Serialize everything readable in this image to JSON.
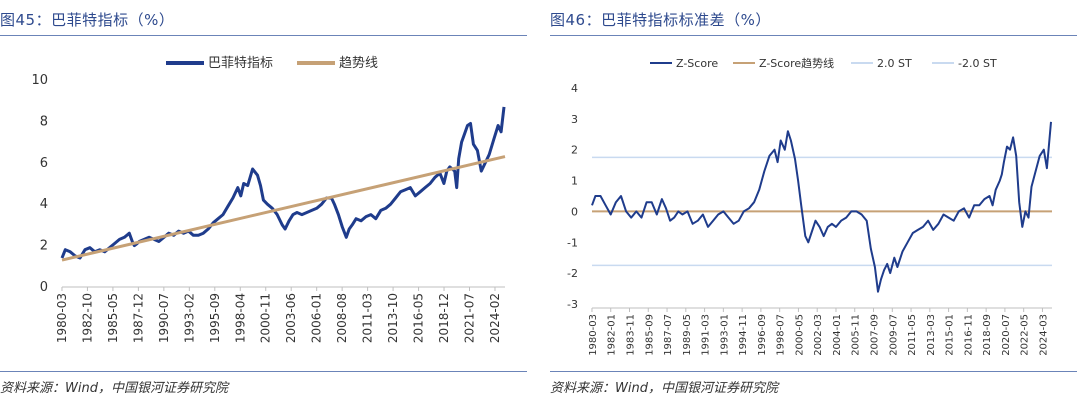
{
  "figures": [
    {
      "title": "图45：巴菲特指标（%）",
      "source": "资料来源：Wind，中国银河证券研究院"
    },
    {
      "title": "图46：巴菲特指标标准差（%）",
      "source": "资料来源：Wind，中国银河证券研究院"
    }
  ],
  "colors": {
    "navy": "#1f3c8c",
    "tan": "#c6a176",
    "light_blue": "#c9daf0",
    "axis": "#bfbfbf",
    "title": "#2e4a8e"
  },
  "chart_data": [
    {
      "type": "line",
      "title": "巴菲特指标（%）",
      "ylim": [
        0,
        10
      ],
      "yticks": [
        "0",
        "2",
        "4",
        "6",
        "8",
        "10"
      ],
      "xlim": [
        1980.17,
        2025.1
      ],
      "tick_labels": [
        "1980-03",
        "1982-10",
        "1985-05",
        "1987-12",
        "1990-07",
        "1993-02",
        "1995-09",
        "1998-04",
        "2000-11",
        "2003-06",
        "2006-01",
        "2008-08",
        "2011-03",
        "2013-10",
        "2016-05",
        "2018-12",
        "2021-07",
        "2024-02"
      ],
      "legend": [
        "巴菲特指标",
        "趋势线"
      ],
      "series": [
        {
          "name": "巴菲特指标",
          "x": [
            1980.17,
            1980.5,
            1981.0,
            1981.5,
            1982.0,
            1982.5,
            1983.0,
            1983.5,
            1984.0,
            1984.5,
            1985.0,
            1985.5,
            1986.0,
            1986.5,
            1987.0,
            1987.3,
            1987.5,
            1987.8,
            1988.0,
            1988.5,
            1989.0,
            1989.5,
            1990.0,
            1990.5,
            1991.0,
            1991.5,
            1992.0,
            1992.5,
            1993.0,
            1993.5,
            1994.0,
            1994.5,
            1995.0,
            1995.5,
            1996.0,
            1996.5,
            1997.0,
            1997.5,
            1998.0,
            1998.3,
            1998.6,
            1999.0,
            1999.5,
            2000.0,
            2000.3,
            2000.6,
            2001.0,
            2001.5,
            2002.0,
            2002.5,
            2002.8,
            2003.2,
            2003.6,
            2004.0,
            2004.5,
            2005.0,
            2005.5,
            2006.0,
            2006.5,
            2007.0,
            2007.5,
            2007.8,
            2008.2,
            2008.6,
            2009.0,
            2009.3,
            2009.6,
            2010.0,
            2010.5,
            2011.0,
            2011.5,
            2012.0,
            2012.5,
            2013.0,
            2013.5,
            2014.0,
            2014.5,
            2015.0,
            2015.5,
            2016.0,
            2016.5,
            2017.0,
            2017.5,
            2018.0,
            2018.5,
            2018.9,
            2019.2,
            2019.5,
            2020.0,
            2020.2,
            2020.4,
            2020.7,
            2021.0,
            2021.3,
            2021.6,
            2021.9,
            2022.3,
            2022.7,
            2023.0,
            2023.5,
            2024.0,
            2024.4,
            2024.7,
            2025.0
          ],
          "y": [
            1.4,
            1.8,
            1.7,
            1.5,
            1.4,
            1.8,
            1.9,
            1.7,
            1.8,
            1.7,
            1.9,
            2.1,
            2.3,
            2.4,
            2.6,
            2.2,
            2.0,
            2.1,
            2.2,
            2.3,
            2.4,
            2.3,
            2.2,
            2.4,
            2.6,
            2.5,
            2.7,
            2.6,
            2.7,
            2.5,
            2.5,
            2.6,
            2.8,
            3.1,
            3.3,
            3.5,
            3.9,
            4.3,
            4.8,
            4.4,
            5.0,
            4.9,
            5.7,
            5.4,
            4.9,
            4.2,
            4.0,
            3.8,
            3.5,
            3.0,
            2.8,
            3.2,
            3.5,
            3.6,
            3.5,
            3.6,
            3.7,
            3.8,
            4.0,
            4.3,
            4.3,
            4.0,
            3.5,
            2.9,
            2.4,
            2.8,
            3.0,
            3.3,
            3.2,
            3.4,
            3.5,
            3.3,
            3.7,
            3.8,
            4.0,
            4.3,
            4.6,
            4.7,
            4.8,
            4.4,
            4.6,
            4.8,
            5.0,
            5.3,
            5.5,
            5.0,
            5.6,
            5.8,
            5.6,
            4.8,
            6.2,
            7.0,
            7.4,
            7.8,
            7.9,
            6.9,
            6.6,
            5.6,
            5.9,
            6.4,
            7.2,
            7.8,
            7.5,
            8.7
          ]
        },
        {
          "name": "趋势线",
          "x": [
            1980.17,
            2025.1
          ],
          "y": [
            1.3,
            6.3
          ]
        }
      ]
    },
    {
      "type": "line",
      "title": "巴菲特指标标准差（%）",
      "ylim": [
        -3,
        4
      ],
      "yticks": [
        "-3",
        "-2",
        "-1",
        "0",
        "1",
        "2",
        "3",
        "4"
      ],
      "xlim": [
        1980.17,
        2025.1
      ],
      "tick_labels": [
        "1980-03",
        "1982-01",
        "1983-11",
        "1985-09",
        "1987-07",
        "1989-05",
        "1991-03",
        "1993-01",
        "1994-11",
        "1996-09",
        "1998-07",
        "2000-05",
        "2002-03",
        "2004-01",
        "2005-11",
        "2007-09",
        "2009-07",
        "2011-05",
        "2013-03",
        "2015-01",
        "2016-11",
        "2018-09",
        "2020-07",
        "2022-05",
        "2024-03"
      ],
      "legend": [
        "Z-Score",
        "Z-Score趋势线",
        "2.0 ST",
        "-2.0 ST"
      ],
      "series": [
        {
          "name": "Z-Score",
          "x": [
            1980.17,
            1980.5,
            1981.0,
            1981.5,
            1982.0,
            1982.5,
            1983.0,
            1983.5,
            1984.0,
            1984.5,
            1985.0,
            1985.5,
            1986.0,
            1986.5,
            1987.0,
            1987.4,
            1987.8,
            1988.2,
            1988.6,
            1989.0,
            1989.5,
            1990.0,
            1990.5,
            1991.0,
            1991.5,
            1992.0,
            1992.5,
            1993.0,
            1993.5,
            1994.0,
            1994.5,
            1995.0,
            1995.5,
            1996.0,
            1996.5,
            1997.0,
            1997.5,
            1998.0,
            1998.3,
            1998.6,
            1999.0,
            1999.3,
            1999.6,
            2000.0,
            2000.3,
            2000.6,
            2001.0,
            2001.3,
            2001.6,
            2002.0,
            2002.4,
            2002.8,
            2003.2,
            2003.6,
            2004.0,
            2004.5,
            2005.0,
            2005.5,
            2006.0,
            2006.5,
            2007.0,
            2007.4,
            2007.8,
            2008.1,
            2008.4,
            2008.7,
            2009.0,
            2009.3,
            2009.7,
            2010.0,
            2010.5,
            2011.0,
            2011.5,
            2012.0,
            2012.5,
            2013.0,
            2013.5,
            2014.0,
            2014.5,
            2015.0,
            2015.5,
            2016.0,
            2016.5,
            2017.0,
            2017.5,
            2018.0,
            2018.5,
            2019.0,
            2019.3,
            2019.6,
            2020.0,
            2020.2,
            2020.4,
            2020.7,
            2021.0,
            2021.3,
            2021.6,
            2021.9,
            2022.2,
            2022.5,
            2022.8,
            2023.1,
            2023.5,
            2023.9,
            2024.3,
            2024.6,
            2025.0
          ],
          "y": [
            0.2,
            0.5,
            0.5,
            0.2,
            -0.1,
            0.3,
            0.5,
            0.0,
            -0.2,
            0.0,
            -0.2,
            0.3,
            0.3,
            -0.1,
            0.4,
            0.1,
            -0.3,
            -0.2,
            0.0,
            -0.1,
            0.0,
            -0.4,
            -0.3,
            -0.1,
            -0.5,
            -0.3,
            -0.1,
            0.0,
            -0.2,
            -0.4,
            -0.3,
            0.0,
            0.1,
            0.3,
            0.7,
            1.3,
            1.8,
            2.0,
            1.6,
            2.3,
            2.0,
            2.6,
            2.3,
            1.7,
            1.0,
            0.2,
            -0.8,
            -1.0,
            -0.7,
            -0.3,
            -0.5,
            -0.8,
            -0.5,
            -0.4,
            -0.5,
            -0.3,
            -0.2,
            0.0,
            0.0,
            -0.1,
            -0.3,
            -1.2,
            -1.8,
            -2.6,
            -2.2,
            -1.9,
            -1.7,
            -2.0,
            -1.5,
            -1.8,
            -1.3,
            -1.0,
            -0.7,
            -0.6,
            -0.5,
            -0.3,
            -0.6,
            -0.4,
            -0.1,
            -0.2,
            -0.3,
            0.0,
            0.1,
            -0.2,
            0.2,
            0.2,
            0.4,
            0.5,
            0.2,
            0.7,
            1.0,
            1.2,
            1.6,
            2.1,
            2.0,
            2.4,
            1.8,
            0.3,
            -0.5,
            0.0,
            -0.2,
            0.8,
            1.3,
            1.8,
            2.0,
            1.4,
            2.9
          ]
        },
        {
          "name": "Z-Score趋势线",
          "x": [
            1980.17,
            2025.1
          ],
          "y": [
            0,
            0
          ]
        },
        {
          "name": "2.0 ST",
          "x": [
            1980.17,
            2025.1
          ],
          "y": [
            1.75,
            1.75
          ]
        },
        {
          "name": "-2.0 ST",
          "x": [
            1980.17,
            2025.1
          ],
          "y": [
            -1.75,
            -1.75
          ]
        }
      ]
    }
  ]
}
